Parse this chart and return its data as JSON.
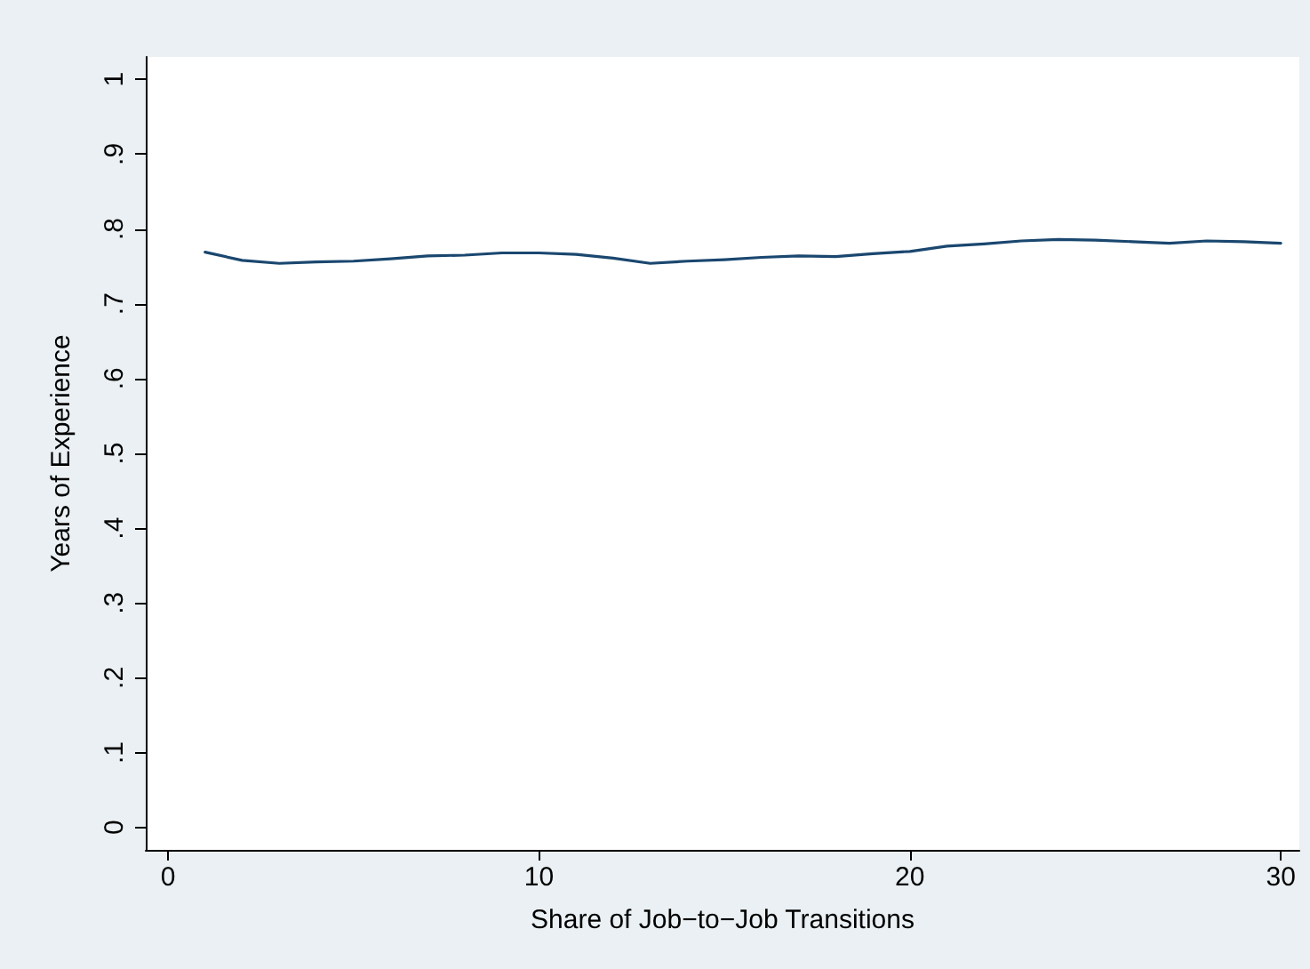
{
  "chart_data": {
    "type": "line",
    "xlabel": "Share of Job−to−Job Transitions",
    "ylabel": "Years of Experience",
    "x": [
      1,
      2,
      3,
      4,
      5,
      6,
      7,
      8,
      9,
      10,
      11,
      12,
      13,
      14,
      15,
      16,
      17,
      18,
      19,
      20,
      21,
      22,
      23,
      24,
      25,
      26,
      27,
      28,
      29,
      30
    ],
    "series": [
      {
        "color": "#1a476f",
        "values": [
          0.769,
          0.758,
          0.754,
          0.756,
          0.757,
          0.76,
          0.764,
          0.765,
          0.768,
          0.768,
          0.766,
          0.761,
          0.754,
          0.757,
          0.759,
          0.762,
          0.764,
          0.763,
          0.767,
          0.77,
          0.777,
          0.78,
          0.784,
          0.786,
          0.785,
          0.783,
          0.781,
          0.784,
          0.783,
          0.781
        ]
      }
    ],
    "xlim": [
      -0.6,
      30.5
    ],
    "xticks": [
      0,
      10,
      20,
      30
    ],
    "ylim": [
      -0.03,
      1.03
    ],
    "yticks": [
      {
        "value": 0,
        "label": "0"
      },
      {
        "value": 0.1,
        "label": ".1"
      },
      {
        "value": 0.2,
        "label": ".2"
      },
      {
        "value": 0.3,
        "label": ".3"
      },
      {
        "value": 0.4,
        "label": ".4"
      },
      {
        "value": 0.5,
        "label": ".5"
      },
      {
        "value": 0.6,
        "label": ".6"
      },
      {
        "value": 0.7,
        "label": ".7"
      },
      {
        "value": 0.8,
        "label": ".8"
      },
      {
        "value": 0.9,
        "label": ".9"
      },
      {
        "value": 1,
        "label": "1"
      }
    ],
    "grid": false,
    "marker": "none",
    "line_style": "solid"
  }
}
